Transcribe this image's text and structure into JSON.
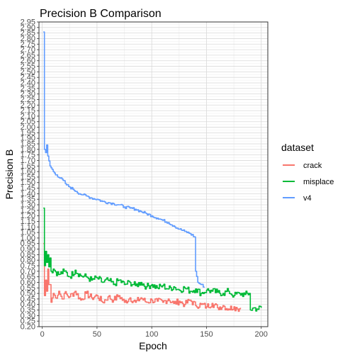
{
  "chart_data": {
    "type": "line",
    "title": "Precision B Comparison",
    "xlabel": "Epoch",
    "ylabel": "Precision B",
    "xlim": [
      -3,
      206
    ],
    "ylim": [
      0.2,
      2.95
    ],
    "x_ticks": [
      0,
      50,
      100,
      150,
      200
    ],
    "y_ticks": [
      0.2,
      0.25,
      0.3,
      0.35,
      0.4,
      0.45,
      0.5,
      0.55,
      0.6,
      0.65,
      0.7,
      0.75,
      0.8,
      0.85,
      0.9,
      0.95,
      1.0,
      1.05,
      1.1,
      1.15,
      1.2,
      1.25,
      1.3,
      1.35,
      1.4,
      1.45,
      1.5,
      1.55,
      1.6,
      1.65,
      1.7,
      1.75,
      1.8,
      1.85,
      1.9,
      1.95,
      2.0,
      2.05,
      2.1,
      2.15,
      2.2,
      2.25,
      2.3,
      2.35,
      2.4,
      2.45,
      2.5,
      2.55,
      2.6,
      2.65,
      2.7,
      2.75,
      2.8,
      2.85,
      2.9,
      2.95
    ],
    "grid": true,
    "legend": {
      "title": "dataset",
      "placement": "right"
    },
    "series": [
      {
        "name": "crack",
        "color": "#F8766D",
        "points": [
          [
            1,
            0.95
          ],
          [
            2,
            0.48
          ],
          [
            3,
            0.62
          ],
          [
            4,
            0.52
          ],
          [
            5,
            0.72
          ],
          [
            6,
            0.58
          ],
          [
            8,
            0.42
          ],
          [
            10,
            0.5
          ],
          [
            12,
            0.46
          ],
          [
            15,
            0.52
          ],
          [
            18,
            0.45
          ],
          [
            20,
            0.5
          ],
          [
            25,
            0.47
          ],
          [
            30,
            0.52
          ],
          [
            35,
            0.44
          ],
          [
            40,
            0.5
          ],
          [
            45,
            0.46
          ],
          [
            50,
            0.48
          ],
          [
            55,
            0.42
          ],
          [
            60,
            0.47
          ],
          [
            65,
            0.44
          ],
          [
            70,
            0.48
          ],
          [
            75,
            0.42
          ],
          [
            80,
            0.46
          ],
          [
            85,
            0.42
          ],
          [
            90,
            0.46
          ],
          [
            95,
            0.42
          ],
          [
            100,
            0.44
          ],
          [
            105,
            0.43
          ],
          [
            110,
            0.42
          ],
          [
            115,
            0.45
          ],
          [
            120,
            0.41
          ],
          [
            125,
            0.43
          ],
          [
            130,
            0.4
          ],
          [
            135,
            0.44
          ],
          [
            140,
            0.39
          ],
          [
            145,
            0.4
          ],
          [
            150,
            0.38
          ],
          [
            155,
            0.41
          ],
          [
            160,
            0.37
          ],
          [
            165,
            0.39
          ],
          [
            170,
            0.36
          ],
          [
            175,
            0.38
          ],
          [
            178,
            0.36
          ],
          [
            181,
            0.37
          ]
        ]
      },
      {
        "name": "misplace",
        "color": "#00BA38",
        "points": [
          [
            1,
            1.27
          ],
          [
            2,
            0.75
          ],
          [
            3,
            0.88
          ],
          [
            4,
            0.78
          ],
          [
            5,
            0.85
          ],
          [
            6,
            0.74
          ],
          [
            7,
            0.82
          ],
          [
            8,
            0.7
          ],
          [
            10,
            0.72
          ],
          [
            15,
            0.67
          ],
          [
            20,
            0.7
          ],
          [
            25,
            0.65
          ],
          [
            30,
            0.71
          ],
          [
            35,
            0.66
          ],
          [
            40,
            0.65
          ],
          [
            45,
            0.62
          ],
          [
            50,
            0.64
          ],
          [
            55,
            0.6
          ],
          [
            60,
            0.62
          ],
          [
            65,
            0.58
          ],
          [
            70,
            0.62
          ],
          [
            75,
            0.58
          ],
          [
            80,
            0.6
          ],
          [
            85,
            0.57
          ],
          [
            90,
            0.6
          ],
          [
            95,
            0.56
          ],
          [
            100,
            0.58
          ],
          [
            105,
            0.55
          ],
          [
            110,
            0.57
          ],
          [
            115,
            0.54
          ],
          [
            120,
            0.56
          ],
          [
            125,
            0.53
          ],
          [
            130,
            0.55
          ],
          [
            135,
            0.52
          ],
          [
            140,
            0.54
          ],
          [
            145,
            0.5
          ],
          [
            150,
            0.53
          ],
          [
            155,
            0.52
          ],
          [
            160,
            0.51
          ],
          [
            165,
            0.5
          ],
          [
            170,
            0.52
          ],
          [
            175,
            0.48
          ],
          [
            180,
            0.5
          ],
          [
            185,
            0.49
          ],
          [
            189,
            0.5
          ],
          [
            190,
            0.35
          ],
          [
            193,
            0.37
          ],
          [
            196,
            0.36
          ],
          [
            200,
            0.37
          ]
        ]
      },
      {
        "name": "v4",
        "color": "#619CFF",
        "points": [
          [
            1,
            2.86
          ],
          [
            2,
            1.8
          ],
          [
            3,
            1.77
          ],
          [
            4,
            1.84
          ],
          [
            5,
            1.74
          ],
          [
            7,
            1.65
          ],
          [
            10,
            1.6
          ],
          [
            13,
            1.57
          ],
          [
            16,
            1.54
          ],
          [
            19,
            1.52
          ],
          [
            22,
            1.48
          ],
          [
            25,
            1.46
          ],
          [
            28,
            1.44
          ],
          [
            31,
            1.42
          ],
          [
            34,
            1.4
          ],
          [
            37,
            1.39
          ],
          [
            40,
            1.38
          ],
          [
            45,
            1.36
          ],
          [
            50,
            1.35
          ],
          [
            55,
            1.33
          ],
          [
            60,
            1.32
          ],
          [
            65,
            1.31
          ],
          [
            70,
            1.3
          ],
          [
            75,
            1.28
          ],
          [
            80,
            1.27
          ],
          [
            85,
            1.26
          ],
          [
            90,
            1.24
          ],
          [
            95,
            1.22
          ],
          [
            100,
            1.2
          ],
          [
            105,
            1.18
          ],
          [
            110,
            1.16
          ],
          [
            115,
            1.14
          ],
          [
            120,
            1.11
          ],
          [
            125,
            1.08
          ],
          [
            130,
            1.06
          ],
          [
            135,
            1.04
          ],
          [
            139,
            1.01
          ],
          [
            140,
            0.7
          ],
          [
            142,
            0.6
          ],
          [
            145,
            0.58
          ],
          [
            148,
            0.56
          ]
        ]
      }
    ]
  }
}
